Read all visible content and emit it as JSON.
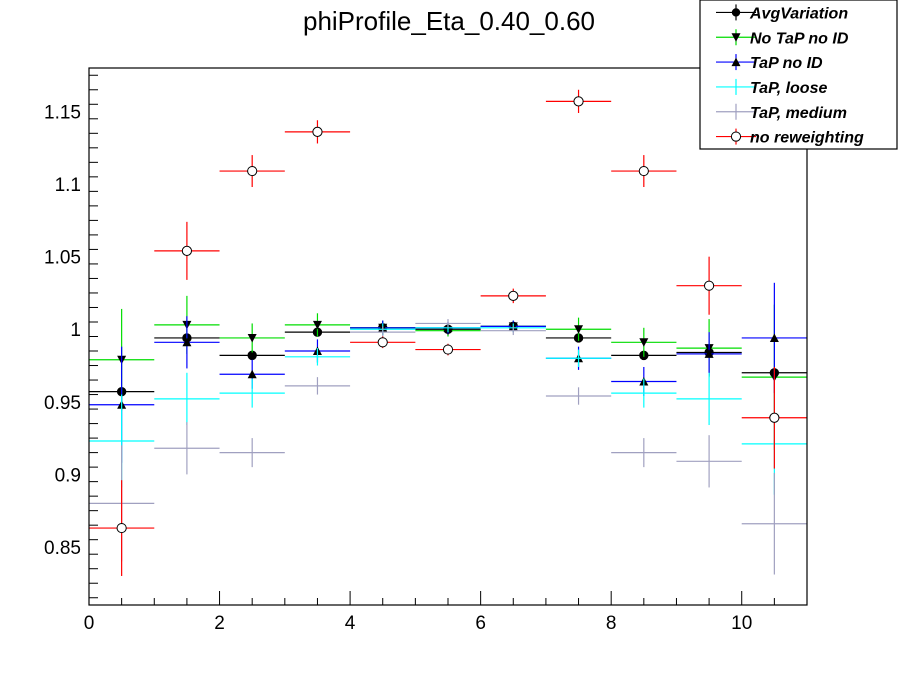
{
  "chart_data": {
    "type": "scatter",
    "title": "phiProfile_Eta_0.40_0.60",
    "xlabel": "",
    "ylabel": "",
    "xlim": [
      0,
      11
    ],
    "ylim": [
      0.81,
      1.18
    ],
    "x_ticks": [
      0,
      2,
      4,
      6,
      8,
      10
    ],
    "y_ticks": [
      0.85,
      0.9,
      0.95,
      1,
      1.05,
      1.1,
      1.15
    ],
    "y_tick_labels": [
      "0.85",
      "0.9",
      "0.95",
      "1",
      "1.05",
      "1.1",
      "1.15"
    ],
    "grid": false,
    "legend_position": "top-right",
    "bin_centers": [
      0.5,
      1.5,
      2.5,
      3.5,
      4.5,
      5.5,
      6.5,
      7.5,
      8.5,
      9.5,
      10.5
    ],
    "bin_half_width": 0.5,
    "series": [
      {
        "name": "AvgVariation",
        "color": "#000000",
        "marker": "circle-filled",
        "values": [
          0.957,
          0.994,
          0.982,
          0.998,
          1.001,
          1.0,
          1.002,
          0.994,
          0.982,
          0.984,
          0.97
        ],
        "errors": [
          0.0,
          0.0,
          0.0,
          0.0,
          0.0,
          0.0,
          0.0,
          0.0,
          0.0,
          0.0,
          0.0
        ]
      },
      {
        "name": "No TaP no ID",
        "color": "#00dd00",
        "marker": "triangle-down",
        "values": [
          0.979,
          1.003,
          0.994,
          1.003,
          1.001,
          0.999,
          1.002,
          1.0,
          0.991,
          0.987,
          0.967
        ],
        "errors": [
          0.035,
          0.02,
          0.01,
          0.008,
          0.005,
          0.004,
          0.004,
          0.008,
          0.01,
          0.02,
          0.05
        ]
      },
      {
        "name": "TaP no ID",
        "color": "#0000ff",
        "marker": "triangle-up",
        "values": [
          0.948,
          0.991,
          0.969,
          0.985,
          1.001,
          1.001,
          1.002,
          0.98,
          0.964,
          0.983,
          0.994
        ],
        "errors": [
          0.04,
          0.018,
          0.01,
          0.008,
          0.005,
          0.004,
          0.004,
          0.008,
          0.01,
          0.015,
          0.038
        ]
      },
      {
        "name": "TaP, loose",
        "color": "#00ffff",
        "marker": "none",
        "values": [
          0.923,
          0.952,
          0.956,
          0.981,
          1.0,
          1.001,
          1.001,
          0.98,
          0.956,
          0.952,
          0.921
        ],
        "errors": [
          0.032,
          0.018,
          0.01,
          0.006,
          0.004,
          0.003,
          0.003,
          0.006,
          0.01,
          0.018,
          0.035
        ]
      },
      {
        "name": "TaP, medium",
        "color": "#a0a0c0",
        "marker": "none",
        "values": [
          0.88,
          0.918,
          0.915,
          0.961,
          0.998,
          1.004,
          0.999,
          0.954,
          0.915,
          0.909,
          0.866
        ],
        "errors": [
          0.04,
          0.018,
          0.01,
          0.006,
          0.004,
          0.003,
          0.003,
          0.006,
          0.01,
          0.018,
          0.035
        ]
      },
      {
        "name": "no reweighting",
        "color": "#ff0000",
        "marker": "circle-open",
        "values": [
          0.863,
          1.054,
          1.109,
          1.136,
          0.991,
          0.986,
          1.023,
          1.157,
          1.109,
          1.03,
          0.939
        ],
        "errors": [
          0.033,
          0.02,
          0.011,
          0.008,
          0.004,
          0.004,
          0.005,
          0.008,
          0.011,
          0.02,
          0.035
        ]
      }
    ]
  }
}
